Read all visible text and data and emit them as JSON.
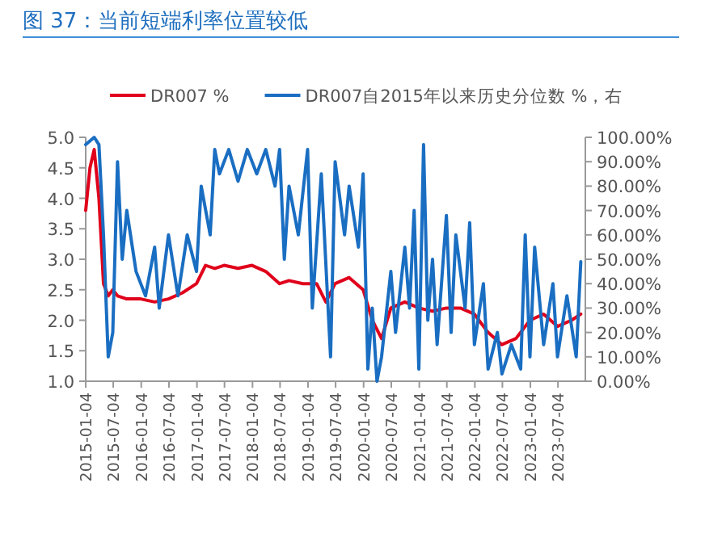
{
  "chart_data": {
    "type": "line",
    "title": "图 37：当前短端利率位置较低",
    "legend": "top",
    "line_style": "solid",
    "xlim": [
      "2015-01-04",
      "2023-12-31"
    ],
    "xticks": [
      {
        "value": "2015-01-04",
        "label": "2015-01-04"
      },
      {
        "value": "2015-07-04",
        "label": "2015-07-04"
      },
      {
        "value": "2016-01-04",
        "label": "2016-01-04"
      },
      {
        "value": "2016-07-04",
        "label": "2016-07-04"
      },
      {
        "value": "2017-01-04",
        "label": "2017-01-04"
      },
      {
        "value": "2017-07-04",
        "label": "2017-07-04"
      },
      {
        "value": "2018-01-04",
        "label": "2018-01-04"
      },
      {
        "value": "2018-07-04",
        "label": "2018-07-04"
      },
      {
        "value": "2019-01-04",
        "label": "2019-01-04"
      },
      {
        "value": "2019-07-04",
        "label": "2019-07-04"
      },
      {
        "value": "2020-01-04",
        "label": "2020-01-04"
      },
      {
        "value": "2020-07-04",
        "label": "2020-07-04"
      },
      {
        "value": "2021-01-04",
        "label": "2021-01-04"
      },
      {
        "value": "2021-07-04",
        "label": "2021-07-04"
      },
      {
        "value": "2022-01-04",
        "label": "2022-01-04"
      },
      {
        "value": "2022-07-04",
        "label": "2022-07-04"
      },
      {
        "value": "2023-01-04",
        "label": "2023-01-04"
      },
      {
        "value": "2023-07-04",
        "label": "2023-07-04"
      }
    ],
    "ylim": [
      1,
      5
    ],
    "yticks": [
      {
        "value": 1,
        "label": "1.0"
      },
      {
        "value": 1.5,
        "label": "1.5"
      },
      {
        "value": 2,
        "label": "2.0"
      },
      {
        "value": 2.5,
        "label": "2.5"
      },
      {
        "value": 3,
        "label": "3.0"
      },
      {
        "value": 3.5,
        "label": "3.5"
      },
      {
        "value": 4,
        "label": "4.0"
      },
      {
        "value": 4.5,
        "label": "4.5"
      },
      {
        "value": 5,
        "label": "5.0"
      }
    ],
    "y2lim": [
      0,
      100
    ],
    "y2ticks": [
      {
        "value": 0,
        "label": "0.00%"
      },
      {
        "value": 10,
        "label": "10.00%"
      },
      {
        "value": 20,
        "label": "20.00%"
      },
      {
        "value": 30,
        "label": "30.00%"
      },
      {
        "value": 40,
        "label": "40.00%"
      },
      {
        "value": 50,
        "label": "50.00%"
      },
      {
        "value": 60,
        "label": "60.00%"
      },
      {
        "value": 70,
        "label": "70.00%"
      },
      {
        "value": 80,
        "label": "80.00%"
      },
      {
        "value": 90,
        "label": "90.00%"
      },
      {
        "value": 100,
        "label": "100.00%"
      }
    ],
    "series": [
      {
        "name": "DR007 %",
        "color": "#e0001b",
        "x": [
          "2015-01-04",
          "2015-02",
          "2015-03",
          "2015-04",
          "2015-05",
          "2015-06",
          "2015-07",
          "2015-08",
          "2015-10",
          "2016-01",
          "2016-04",
          "2016-07",
          "2016-10",
          "2017-01",
          "2017-03",
          "2017-05",
          "2017-07",
          "2017-10",
          "2018-01",
          "2018-04",
          "2018-07",
          "2018-09",
          "2018-12",
          "2019-03",
          "2019-05",
          "2019-07",
          "2019-10",
          "2020-01",
          "2020-03",
          "2020-05",
          "2020-07",
          "2020-10",
          "2021-01",
          "2021-04",
          "2021-07",
          "2021-10",
          "2022-01",
          "2022-04",
          "2022-07",
          "2022-10",
          "2023-01",
          "2023-04",
          "2023-07",
          "2023-10",
          "2023-12"
        ],
        "values": [
          3.8,
          4.5,
          4.8,
          4.0,
          2.6,
          2.4,
          2.5,
          2.4,
          2.35,
          2.35,
          2.3,
          2.35,
          2.45,
          2.6,
          2.9,
          2.85,
          2.9,
          2.85,
          2.9,
          2.8,
          2.6,
          2.65,
          2.6,
          2.6,
          2.3,
          2.6,
          2.7,
          2.5,
          2.0,
          1.7,
          2.2,
          2.3,
          2.2,
          2.15,
          2.2,
          2.2,
          2.1,
          1.8,
          1.6,
          1.7,
          2.0,
          2.1,
          1.9,
          2.0,
          2.1
        ]
      },
      {
        "name": "DR007自2015年以来历史分位数 %，右",
        "color": "#1a6ec2",
        "axis": "y2",
        "x": [
          "2015-01-04",
          "2015-03",
          "2015-04",
          "2015-05",
          "2015-06",
          "2015-07",
          "2015-08",
          "2015-09",
          "2015-10",
          "2015-12",
          "2016-02",
          "2016-04",
          "2016-05",
          "2016-07",
          "2016-09",
          "2016-11",
          "2017-01",
          "2017-02",
          "2017-04",
          "2017-05",
          "2017-06",
          "2017-08",
          "2017-10",
          "2017-12",
          "2018-02",
          "2018-04",
          "2018-06",
          "2018-07",
          "2018-08",
          "2018-09",
          "2018-11",
          "2019-01",
          "2019-02",
          "2019-04",
          "2019-06",
          "2019-07",
          "2019-09",
          "2019-10",
          "2019-12",
          "2020-01",
          "2020-02",
          "2020-03",
          "2020-04",
          "2020-05",
          "2020-07",
          "2020-08",
          "2020-10",
          "2020-11",
          "2020-12",
          "2021-01",
          "2021-02",
          "2021-03",
          "2021-04",
          "2021-05",
          "2021-07",
          "2021-08",
          "2021-09",
          "2021-11",
          "2021-12",
          "2022-01",
          "2022-03",
          "2022-04",
          "2022-06",
          "2022-07",
          "2022-09",
          "2022-11",
          "2022-12",
          "2023-01",
          "2023-02",
          "2023-04",
          "2023-06",
          "2023-07",
          "2023-09",
          "2023-11",
          "2023-12"
        ],
        "values": [
          97,
          100,
          97,
          60,
          10,
          20,
          90,
          50,
          70,
          45,
          35,
          55,
          30,
          60,
          35,
          60,
          45,
          80,
          60,
          95,
          85,
          95,
          82,
          95,
          85,
          95,
          80,
          95,
          50,
          80,
          60,
          95,
          30,
          85,
          10,
          90,
          60,
          80,
          55,
          85,
          5,
          30,
          0,
          10,
          45,
          20,
          55,
          30,
          70,
          5,
          97,
          25,
          50,
          15,
          68,
          20,
          60,
          30,
          65,
          15,
          40,
          5,
          20,
          3,
          15,
          5,
          60,
          10,
          55,
          15,
          40,
          10,
          35,
          10,
          49
        ]
      }
    ]
  }
}
